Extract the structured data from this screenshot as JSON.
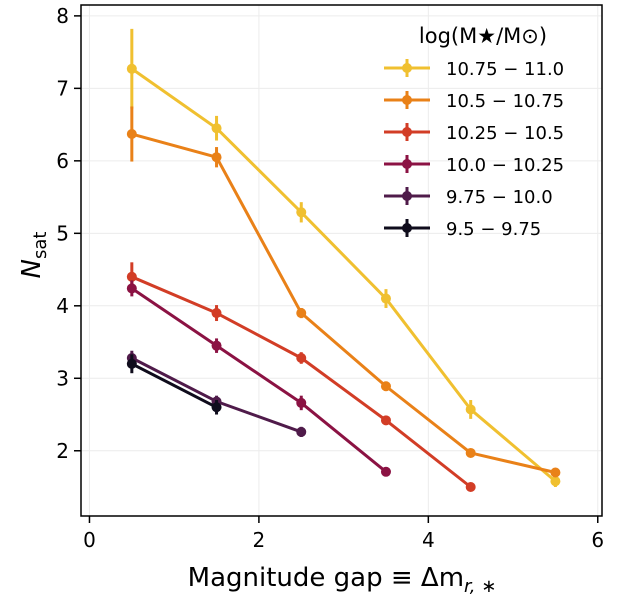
{
  "chart_data": {
    "type": "line",
    "xlabel": "Magnitude gap ≡ Δm",
    "xlabel_sub": "r, ∗",
    "ylabel": "N",
    "ylabel_sub": "sat",
    "xlim": [
      -0.1,
      6.05
    ],
    "ylim": [
      1.1,
      8.15
    ],
    "xticks": [
      0,
      2,
      4,
      6
    ],
    "yticks": [
      2,
      3,
      4,
      5,
      6,
      7,
      8
    ],
    "grid": true,
    "legend_position": "top-right",
    "legend_title": "log(M★/M⊙)",
    "series": [
      {
        "name": "10.75 − 11.0",
        "color": "#f0c030",
        "x": [
          0.5,
          1.5,
          2.5,
          3.5,
          4.5,
          5.5
        ],
        "y": [
          7.27,
          6.45,
          5.29,
          4.1,
          2.57,
          1.58
        ],
        "err": [
          0.55,
          0.17,
          0.14,
          0.13,
          0.13,
          0.08
        ]
      },
      {
        "name": "10.5 − 10.75",
        "color": "#e98118",
        "x": [
          0.5,
          1.5,
          2.5,
          3.5,
          4.5,
          5.5
        ],
        "y": [
          6.37,
          6.05,
          3.9,
          2.89,
          1.97,
          1.7
        ],
        "err": [
          0.38,
          0.14,
          0.07,
          0.06,
          0.04,
          0.05
        ]
      },
      {
        "name": "10.25 − 10.5",
        "color": "#d23d26",
        "x": [
          0.5,
          1.5,
          2.5,
          3.5,
          4.5
        ],
        "y": [
          4.4,
          3.9,
          3.28,
          2.42,
          1.5
        ],
        "err": [
          0.2,
          0.11,
          0.08,
          0.06,
          0.03
        ]
      },
      {
        "name": "10.0 − 10.25",
        "color": "#8b1243",
        "x": [
          0.5,
          1.5,
          2.5,
          3.5
        ],
        "y": [
          4.24,
          3.45,
          2.66,
          1.71
        ],
        "err": [
          0.11,
          0.1,
          0.1,
          0.04
        ]
      },
      {
        "name": "9.75 − 10.0",
        "color": "#4f1b4a",
        "x": [
          0.5,
          1.5,
          2.5
        ],
        "y": [
          3.28,
          2.68,
          2.26
        ],
        "err": [
          0.1,
          0.08,
          0.07
        ]
      },
      {
        "name": "9.5 − 9.75",
        "color": "#0f0c1c",
        "x": [
          0.5,
          1.5
        ],
        "y": [
          3.2,
          2.6
        ],
        "err": [
          0.13,
          0.1
        ]
      }
    ]
  }
}
